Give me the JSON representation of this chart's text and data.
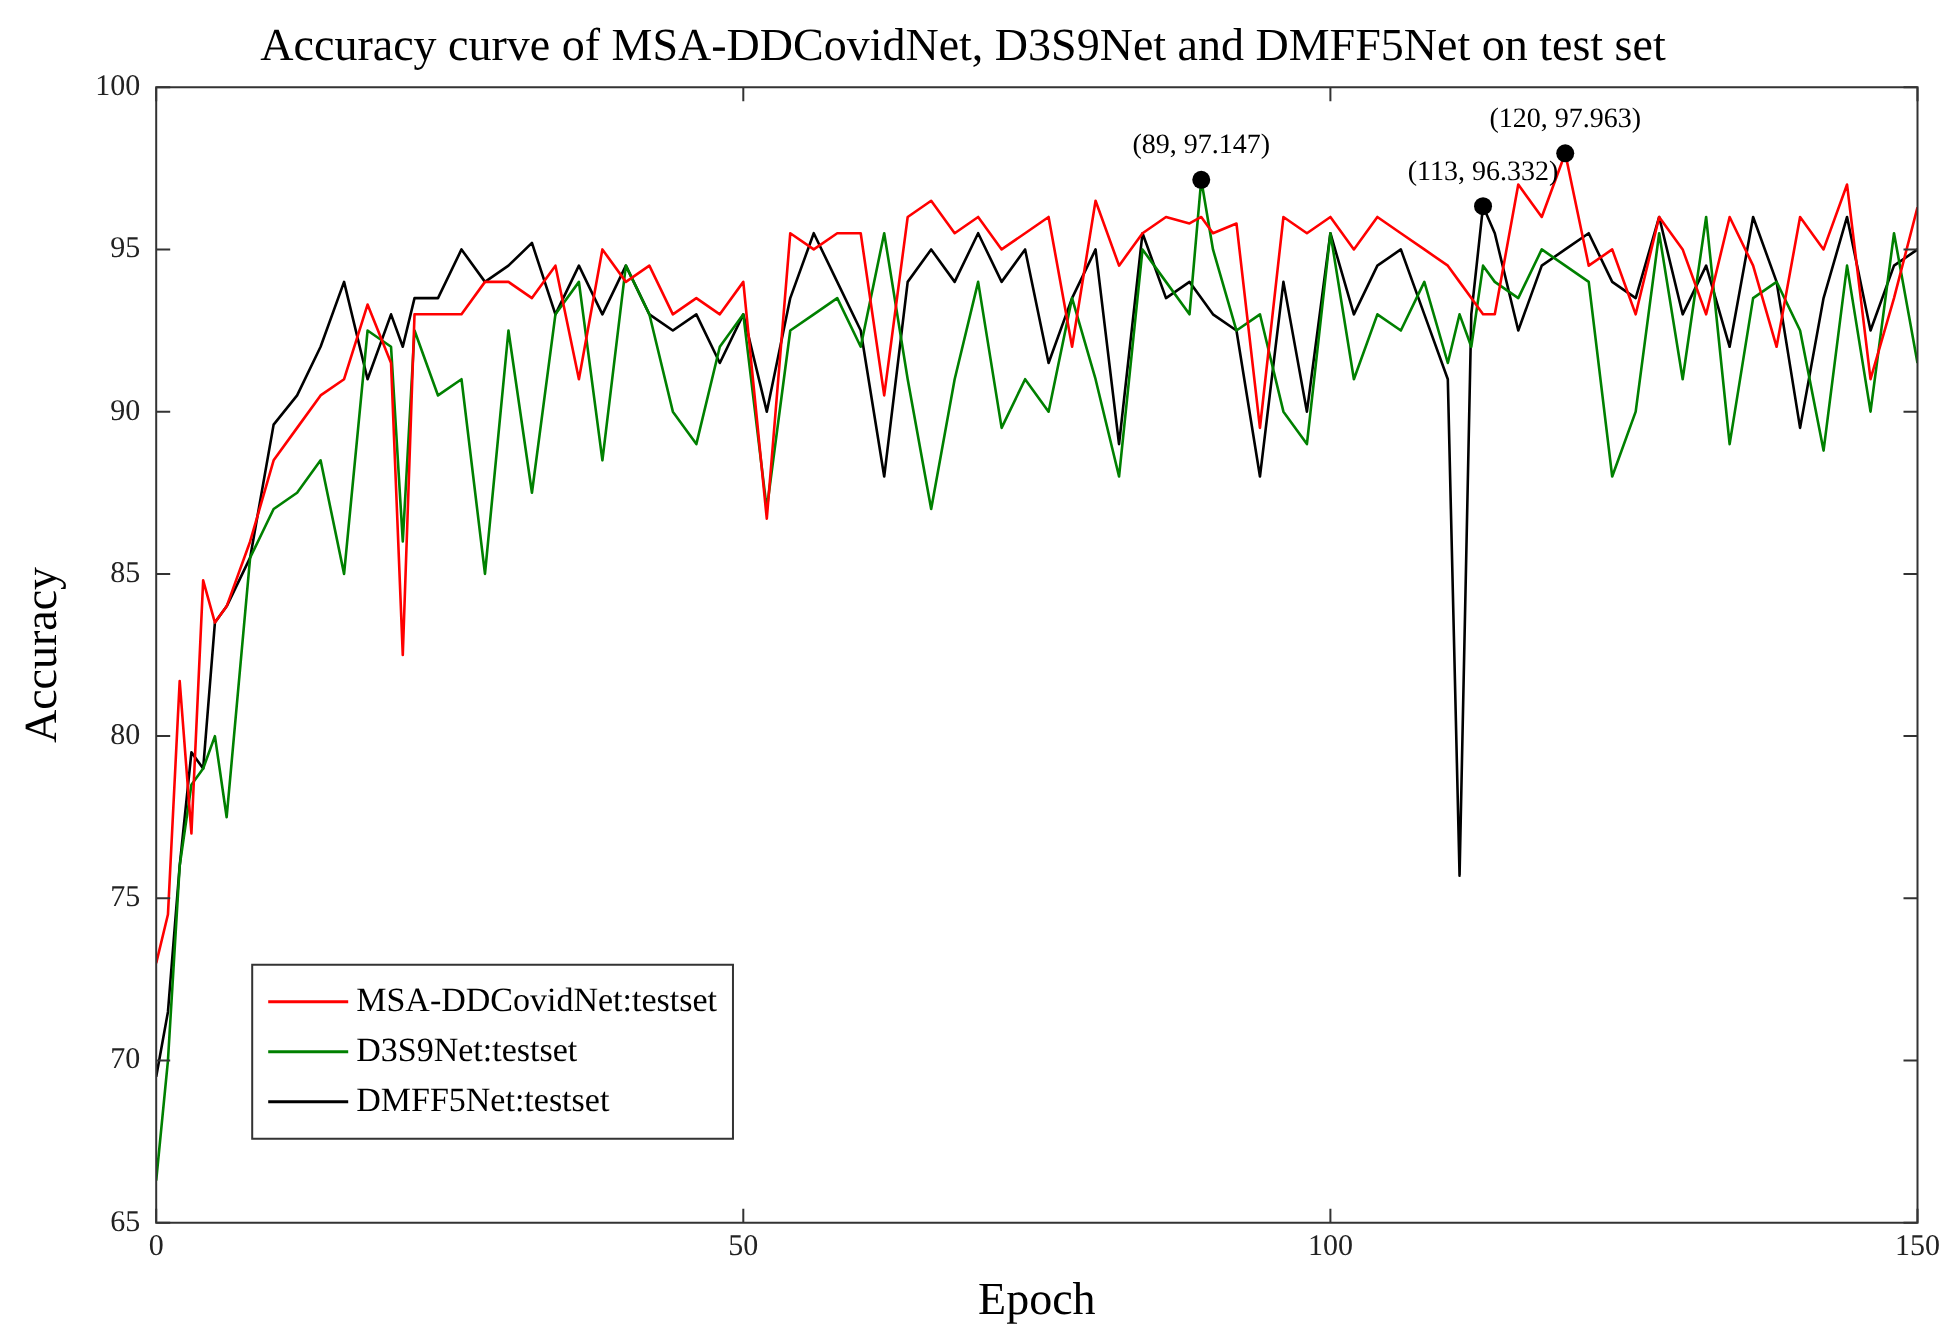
{
  "chart_data": {
    "type": "line",
    "title": "Accuracy curve of MSA-DDCovidNet, D3S9Net and DMFF5Net on test set",
    "xlabel": "Epoch",
    "ylabel": "Accuracy",
    "x": [
      0,
      1,
      2,
      3,
      4,
      5,
      6,
      8,
      10,
      12,
      14,
      16,
      18,
      20,
      21,
      22,
      24,
      26,
      28,
      30,
      32,
      34,
      36,
      38,
      40,
      42,
      44,
      46,
      48,
      50,
      52,
      54,
      56,
      58,
      60,
      62,
      64,
      66,
      68,
      70,
      72,
      74,
      76,
      78,
      80,
      82,
      84,
      86,
      88,
      89,
      90,
      92,
      94,
      96,
      98,
      100,
      102,
      104,
      106,
      108,
      110,
      111,
      112,
      113,
      114,
      116,
      118,
      120,
      122,
      124,
      126,
      128,
      130,
      132,
      134,
      136,
      138,
      140,
      142,
      144,
      146,
      148,
      150
    ],
    "series": [
      {
        "name": "MSA-DDCovidNet:testset",
        "color": "#ff0000",
        "values": [
          73,
          74.5,
          81.7,
          77,
          84.8,
          83.5,
          84,
          86,
          88.5,
          89.5,
          90.5,
          91,
          93.3,
          91.5,
          82.5,
          93,
          93,
          93,
          94,
          94,
          93.5,
          94.5,
          91,
          95,
          94,
          94.5,
          93,
          93.5,
          93,
          94,
          86.7,
          95.5,
          95,
          95.5,
          95.5,
          90.5,
          96,
          96.5,
          95.5,
          96,
          95,
          95.5,
          96,
          92,
          96.5,
          94.5,
          95.5,
          96,
          95.8,
          96,
          95.5,
          95.8,
          89.5,
          96,
          95.5,
          96,
          95,
          96,
          95.5,
          95,
          94.5,
          94,
          93.5,
          93,
          93,
          97,
          96,
          97.963,
          94.5,
          95,
          93,
          96,
          95,
          93,
          96,
          94.5,
          92,
          96,
          95,
          97,
          91,
          93.5,
          96.3
        ]
      },
      {
        "name": "D3S9Net:testset",
        "color": "#008000",
        "values": [
          66.3,
          70,
          76,
          78.5,
          79,
          80,
          77.5,
          85.5,
          87,
          87.5,
          88.5,
          85,
          92.5,
          92,
          86,
          92.5,
          90.5,
          91,
          85,
          92.5,
          87.5,
          93,
          94,
          88.5,
          94.5,
          93,
          90,
          89,
          92,
          93,
          87,
          92.5,
          93,
          93.5,
          92,
          95.5,
          91,
          87,
          91,
          94,
          89.5,
          91,
          90,
          93.5,
          91,
          88,
          95,
          94,
          93,
          97.147,
          95,
          92.5,
          93,
          90,
          89,
          95.5,
          91,
          93,
          92.5,
          94,
          91.5,
          93,
          92,
          94.5,
          94,
          93.5,
          95,
          94.5,
          94,
          88,
          90,
          95.5,
          91,
          96,
          89,
          93.5,
          94,
          92.5,
          88.8,
          94.5,
          90,
          95.5,
          91.5
        ]
      },
      {
        "name": "DMFF5Net:testset",
        "color": "#000000",
        "values": [
          69.5,
          71.5,
          76,
          79.5,
          79,
          83.5,
          84,
          85.5,
          89.6,
          90.5,
          92,
          94,
          91,
          93,
          92,
          93.5,
          93.5,
          95,
          94,
          94.5,
          95.2,
          93,
          94.5,
          93,
          94.5,
          93,
          92.5,
          93,
          91.5,
          93,
          90,
          93.5,
          95.5,
          94,
          92.5,
          88,
          94,
          95,
          94,
          95.5,
          94,
          95,
          91.5,
          93.5,
          95,
          89,
          95.5,
          93.5,
          94,
          93.5,
          93,
          92.5,
          88,
          94,
          90,
          95.5,
          93,
          94.5,
          95,
          93,
          91,
          75.7,
          93,
          96.332,
          95.5,
          92.5,
          94.5,
          95,
          95.5,
          94,
          93.5,
          96,
          93,
          94.5,
          92,
          96,
          94,
          89.5,
          93.5,
          96,
          92.5,
          94.5,
          95
        ]
      }
    ],
    "xlim": [
      0,
      150
    ],
    "xticks": [
      0,
      50,
      100,
      150
    ],
    "ylim": [
      65,
      100
    ],
    "yticks": [
      65,
      70,
      75,
      80,
      85,
      90,
      95,
      100
    ],
    "annotations": [
      {
        "text": "(89, 97.147)",
        "x": 89,
        "y": 97.147
      },
      {
        "text": "(113, 96.332)",
        "x": 113,
        "y": 96.332
      },
      {
        "text": "(120, 97.963)",
        "x": 120,
        "y": 97.963
      }
    ],
    "legend": "bottom left",
    "grid": false,
    "marker": "none",
    "line_style": "solid"
  }
}
